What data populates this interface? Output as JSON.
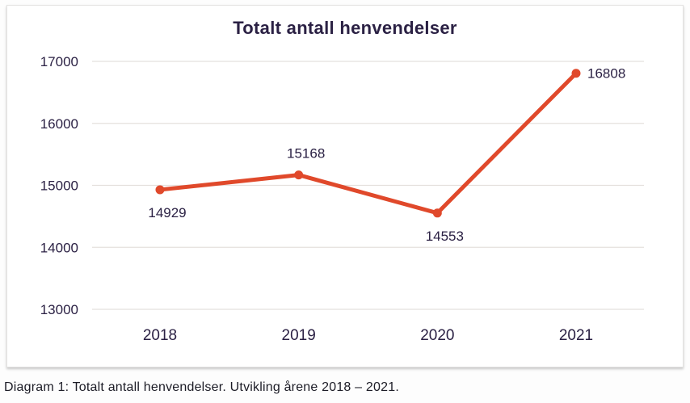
{
  "caption": "Diagram 1: Totalt antall henvendelser. Utvikling årene 2018 – 2021.",
  "chart_data": {
    "type": "line",
    "title": "Totalt antall henvendelser",
    "categories": [
      "2018",
      "2019",
      "2020",
      "2021"
    ],
    "series": [
      {
        "name": "Totalt antall henvendelser",
        "values": [
          14929,
          15168,
          14553,
          16808
        ]
      }
    ],
    "ylim": [
      13000,
      17000
    ],
    "yticks": [
      17000,
      16000,
      15000,
      14000,
      13000
    ],
    "grid": "horizontal",
    "legend": "none",
    "data_labels": [
      {
        "value": "14929",
        "position": "below"
      },
      {
        "value": "15168",
        "position": "above"
      },
      {
        "value": "14553",
        "position": "below"
      },
      {
        "value": "16808",
        "position": "right"
      }
    ],
    "colors": {
      "line": "#e0492b",
      "marker": "#e0492b",
      "text": "#2b2144",
      "grid": "#e4e0dd"
    }
  }
}
